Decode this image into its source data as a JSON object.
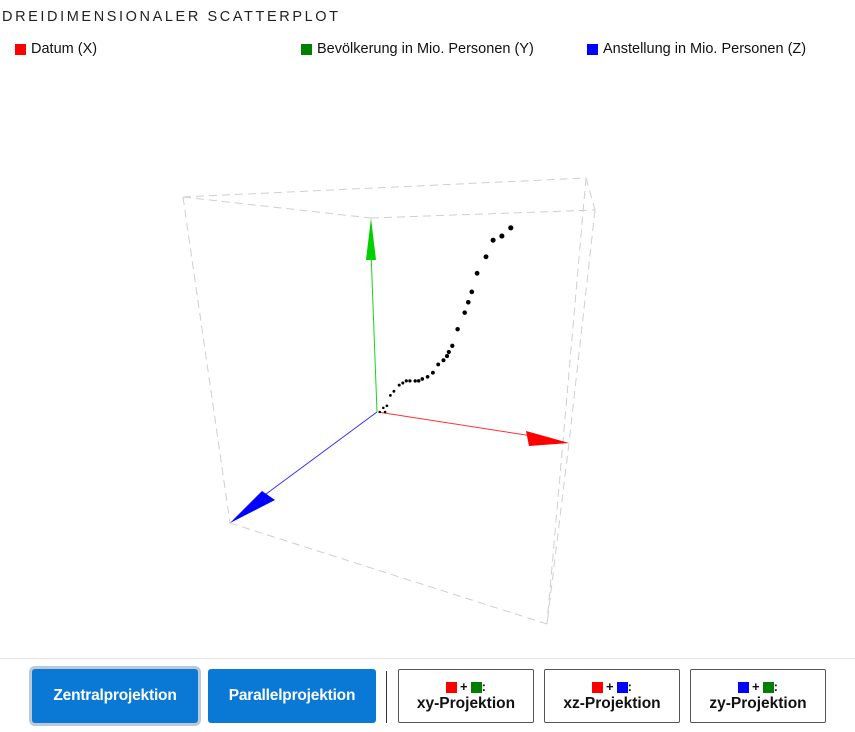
{
  "title": "DREIDIMENSIONALER SCATTERPLOT",
  "legend": [
    {
      "label": "Datum (X)",
      "color": "#ff0000"
    },
    {
      "label": "Bevölkerung in Mio. Personen (Y)",
      "color": "#008000"
    },
    {
      "label": "Anstellung in Mio. Personen (Z)",
      "color": "#0000ff"
    }
  ],
  "toolbar": {
    "central": "Zentralprojektion",
    "parallel": "Parallelprojektion",
    "xy": {
      "label": "xy-Projektion",
      "plus": "+",
      "colon": ":",
      "c1": "#ff0000",
      "c2": "#008000"
    },
    "xz": {
      "label": "xz-Projektion",
      "plus": "+",
      "colon": ":",
      "c1": "#ff0000",
      "c2": "#0000ff"
    },
    "zy": {
      "label": "zy-Projektion",
      "plus": "+",
      "colon": ":",
      "c1": "#0000ff",
      "c2": "#008000"
    }
  },
  "chart_data": {
    "type": "scatter",
    "dimensions": 3,
    "projection": "central",
    "title": "DREIDIMENSIONALER SCATTERPLOT",
    "axes": {
      "x": {
        "label": "Datum (X)",
        "color": "#ff0000"
      },
      "y": {
        "label": "Bevölkerung in Mio. Personen (Y)",
        "color": "#008000"
      },
      "z": {
        "label": "Anstellung in Mio. Personen (Z)",
        "color": "#0000ff"
      }
    },
    "point_color": "#000000",
    "note": "no tick labels or numeric values printed; positions are shown in screen space of the rendered projection",
    "points": [
      [
        0.01,
        0.0
      ],
      [
        0.03,
        0.02
      ],
      [
        0.04,
        0.0
      ],
      [
        0.05,
        0.03
      ],
      [
        0.07,
        0.08
      ],
      [
        0.09,
        0.1
      ],
      [
        0.12,
        0.13
      ],
      [
        0.14,
        0.14
      ],
      [
        0.16,
        0.15
      ],
      [
        0.18,
        0.15
      ],
      [
        0.21,
        0.15
      ],
      [
        0.23,
        0.15
      ],
      [
        0.25,
        0.16
      ],
      [
        0.28,
        0.17
      ],
      [
        0.31,
        0.19
      ],
      [
        0.34,
        0.23
      ],
      [
        0.37,
        0.25
      ],
      [
        0.39,
        0.27
      ],
      [
        0.4,
        0.29
      ],
      [
        0.42,
        0.32
      ],
      [
        0.45,
        0.4
      ],
      [
        0.49,
        0.48
      ],
      [
        0.51,
        0.53
      ],
      [
        0.53,
        0.58
      ],
      [
        0.56,
        0.67
      ],
      [
        0.61,
        0.75
      ],
      [
        0.65,
        0.83
      ],
      [
        0.7,
        0.85
      ],
      [
        0.75,
        0.89
      ]
    ]
  }
}
